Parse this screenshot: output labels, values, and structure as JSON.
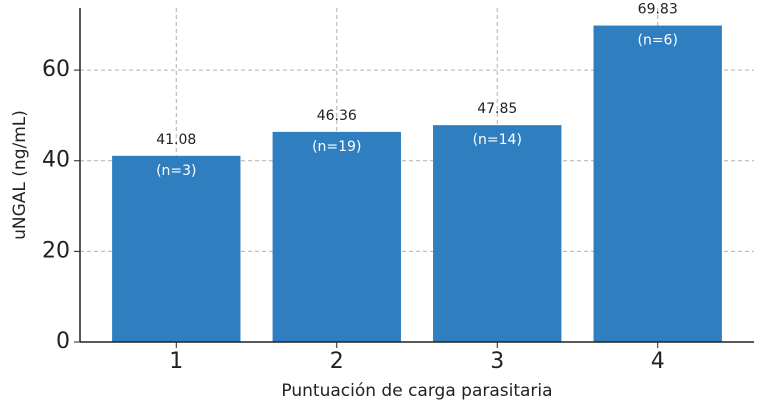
{
  "chart_data": {
    "type": "bar",
    "x_label": "Puntuación de carga parasitaria",
    "y_label": "uNGAL (ng/mL)",
    "categories": [
      "1",
      "2",
      "3",
      "4"
    ],
    "values": [
      41.08,
      46.36,
      47.85,
      69.83
    ],
    "annotations": [
      "(n=3)",
      "(n=19)",
      "(n=14)",
      "(n=6)"
    ],
    "color": "#2f7fc0",
    "ylim": [
      0,
      73.7
    ],
    "yticks": [
      0,
      20,
      40,
      60
    ],
    "grid": true
  }
}
